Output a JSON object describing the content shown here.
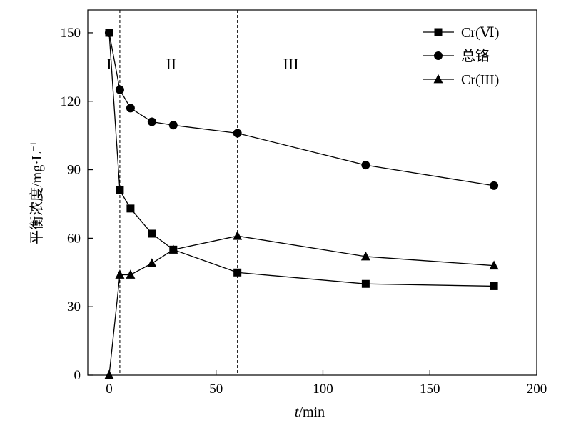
{
  "chart_data": {
    "type": "line",
    "xlabel_italic": "t",
    "xlabel_rest": "/min",
    "ylabel": "平衡浓度/mg·L",
    "ylabel_sup": "−1",
    "xlim": [
      -10,
      200
    ],
    "ylim": [
      0,
      160
    ],
    "xticks": [
      0,
      50,
      100,
      150,
      200
    ],
    "yticks": [
      0,
      30,
      60,
      90,
      120,
      150
    ],
    "grid": false,
    "legend_position": "top-right",
    "vlines": [
      5,
      60
    ],
    "regions": [
      {
        "label": "I",
        "x": 0
      },
      {
        "label": "II",
        "x": 29
      },
      {
        "label": "III",
        "x": 85
      }
    ],
    "region_label_y": 134,
    "series": [
      {
        "name": "Cr(Ⅵ)",
        "marker": "square",
        "x": [
          0,
          5,
          10,
          20,
          30,
          60,
          120,
          180
        ],
        "y": [
          150,
          81,
          73,
          62,
          55,
          45,
          40,
          39
        ]
      },
      {
        "name": "总铬",
        "marker": "circle",
        "x": [
          0,
          5,
          10,
          20,
          30,
          60,
          120,
          180
        ],
        "y": [
          150,
          125,
          117,
          111,
          109.5,
          106,
          92,
          83
        ]
      },
      {
        "name": "Cr(III)",
        "marker": "triangle",
        "x": [
          0,
          5,
          10,
          20,
          30,
          60,
          120,
          180
        ],
        "y": [
          0,
          44,
          44,
          49,
          55,
          61,
          52,
          48
        ]
      }
    ]
  }
}
